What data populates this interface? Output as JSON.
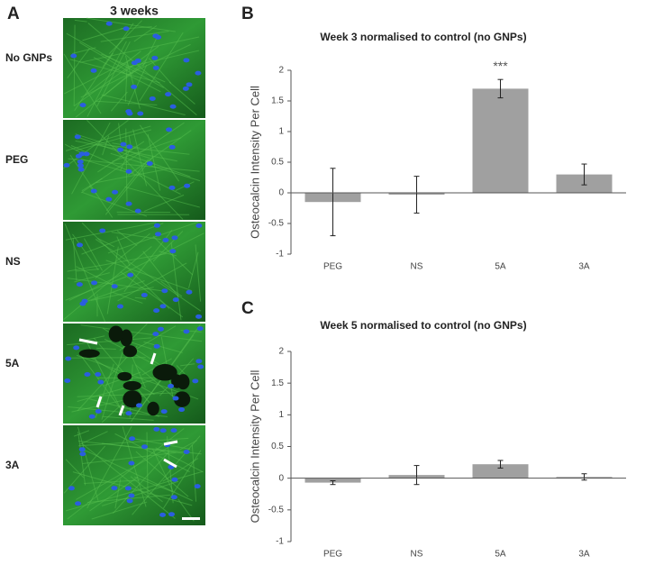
{
  "panel_labels": [
    "A",
    "B",
    "C"
  ],
  "image_panel": {
    "title": "3 weeks",
    "rows": [
      "No GNPs",
      "PEG",
      "NS",
      "5A",
      "3A"
    ]
  },
  "chart_data": [
    {
      "type": "bar",
      "title": "Week 3 normalised to control (no GNPs)",
      "y_label": "Osteocalcin Intensity Per Cell",
      "categories": [
        "PEG",
        "NS",
        "5A",
        "3A"
      ],
      "values": [
        -0.15,
        -0.03,
        1.7,
        0.3
      ],
      "errors": [
        0.55,
        0.3,
        0.15,
        0.17
      ],
      "color": "#a0a0a0",
      "ylim": [
        -1,
        2
      ],
      "yticks": [
        -1,
        -0.5,
        0,
        0.5,
        1,
        1.5,
        2
      ],
      "annotations": [
        {
          "text": "***",
          "category": 2
        }
      ]
    },
    {
      "type": "bar",
      "title": "Week 5 normalised to control (no GNPs)",
      "y_label": "Osteocalcin Intensity Per Cell",
      "categories": [
        "PEG",
        "NS",
        "5A",
        "3A"
      ],
      "values": [
        -0.07,
        0.05,
        0.22,
        0.02
      ],
      "errors": [
        0.03,
        0.15,
        0.06,
        0.05
      ],
      "color": "#a0a0a0",
      "ylim": [
        -1,
        2
      ],
      "yticks": [
        -1,
        -0.5,
        0,
        0.5,
        1,
        1.5,
        2
      ]
    }
  ]
}
